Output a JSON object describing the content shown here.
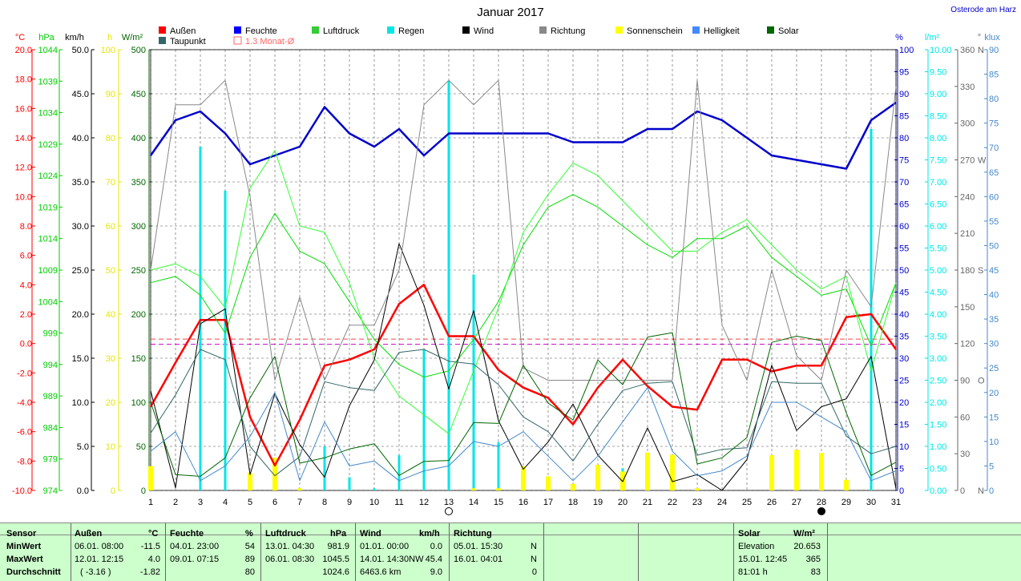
{
  "location": "Osterode am Harz",
  "chart_data": {
    "type": "line",
    "title": "Januar 2017",
    "categories": [
      "1",
      "2",
      "3",
      "4",
      "5",
      "6",
      "7",
      "8",
      "9",
      "10",
      "11",
      "12",
      "13",
      "14",
      "15",
      "16",
      "17",
      "18",
      "19",
      "20",
      "21",
      "22",
      "23",
      "24",
      "25",
      "26",
      "27",
      "28",
      "29",
      "30",
      "31"
    ],
    "axes": {
      "temp": {
        "unit": "°C",
        "min": -10,
        "max": 20,
        "ticks": [
          "-10.0",
          "-8.0",
          "-6.0",
          "-4.0",
          "-2.0",
          "0.0",
          "2.0",
          "4.0",
          "6.0",
          "8.0",
          "10.0",
          "12.0",
          "14.0",
          "16.0",
          "18.0",
          "20.0"
        ],
        "color": "#ff0000"
      },
      "pressure": {
        "unit": "hPa",
        "min": 974,
        "max": 1044,
        "ticks": [
          "974",
          "979",
          "984",
          "989",
          "994",
          "999",
          "1004",
          "1009",
          "1014",
          "1019",
          "1024",
          "1029",
          "1034",
          "1039",
          "1044"
        ],
        "color": "#00cc00"
      },
      "wind": {
        "unit": "km/h",
        "min": 0,
        "max": 50,
        "ticks": [
          "0.0",
          "5.0",
          "10.0",
          "15.0",
          "20.0",
          "25.0",
          "30.0",
          "35.0",
          "40.0",
          "45.0",
          "50.0"
        ],
        "color": "#000000"
      },
      "sun": {
        "unit": "h",
        "min": 0,
        "max": 100,
        "ticks": [
          "0",
          "10",
          "20",
          "30",
          "40",
          "50",
          "60",
          "70",
          "80",
          "90",
          "100"
        ],
        "color": "#e6e600"
      },
      "solar": {
        "unit": "W/m²",
        "min": 0,
        "max": 500,
        "ticks": [
          "0",
          "50",
          "100",
          "150",
          "200",
          "250",
          "300",
          "350",
          "400",
          "450",
          "500"
        ],
        "color": "#006600"
      },
      "humidity": {
        "unit": "%",
        "min": 0,
        "max": 100,
        "ticks": [
          "0",
          "5",
          "10",
          "15",
          "20",
          "25",
          "30",
          "35",
          "40",
          "45",
          "50",
          "55",
          "60",
          "65",
          "70",
          "75",
          "80",
          "85",
          "90",
          "95",
          "100"
        ],
        "color": "#0000cc"
      },
      "rain": {
        "unit": "l/m²",
        "min": 0,
        "max": 10,
        "ticks": [
          "0.00",
          "0.50",
          "1.00",
          "1.50",
          "2.00",
          "2.50",
          "3.00",
          "3.50",
          "4.00",
          "4.50",
          "5.00",
          "5.50",
          "6.00",
          "6.50",
          "7.00",
          "7.50",
          "8.00",
          "8.50",
          "9.00",
          "9.50",
          "10.00"
        ],
        "color": "#00e6e6"
      },
      "direction": {
        "unit": "°",
        "min": 0,
        "max": 360,
        "ticks": [
          "0",
          "30",
          "60",
          "90",
          "120",
          "150",
          "180",
          "210",
          "240",
          "270",
          "300",
          "330",
          "360"
        ],
        "cardinals": {
          "0": "N",
          "90": "O",
          "180": "S",
          "270": "W",
          "360": "N"
        },
        "color": "#666666"
      },
      "brightness": {
        "unit": "klux",
        "min": 0,
        "max": 90,
        "ticks": [
          "0",
          "5",
          "10",
          "15",
          "20",
          "25",
          "30",
          "35",
          "40",
          "45",
          "50",
          "55",
          "60",
          "65",
          "70",
          "75",
          "80",
          "85",
          "90"
        ],
        "color": "#4488cc"
      }
    },
    "legend": [
      {
        "name": "Außen",
        "color": "#ff0000"
      },
      {
        "name": "Feuchte",
        "color": "#0000ff"
      },
      {
        "name": "Luftdruck",
        "color": "#33cc33"
      },
      {
        "name": "Regen",
        "color": "#00e6e6"
      },
      {
        "name": "Wind",
        "color": "#000000"
      },
      {
        "name": "Richtung",
        "color": "#888888"
      },
      {
        "name": "Sonnenschein",
        "color": "#ffff00"
      },
      {
        "name": "Helligkeit",
        "color": "#4488ff"
      },
      {
        "name": "Solar",
        "color": "#006600"
      },
      {
        "name": "Taupunkt",
        "color": "#336666"
      },
      {
        "name": "1.3 Monat-Ø",
        "color": "#ff6666",
        "hollow": true
      }
    ],
    "series": [
      {
        "name": "Außen",
        "axis": "temp",
        "color": "#ff0000",
        "width": 2.5,
        "values": [
          -4.3,
          -1.3,
          1.6,
          1.6,
          -5.0,
          -8.3,
          -5.2,
          -1.5,
          -1.1,
          -0.4,
          2.7,
          4.0,
          0.5,
          0.5,
          -1.8,
          -3.0,
          -3.7,
          -5.5,
          -3.0,
          -1.1,
          -2.9,
          -4.3,
          -4.5,
          -1.1,
          -1.1,
          -1.9,
          -1.5,
          -1.5,
          1.8,
          2.0,
          -0.4
        ]
      },
      {
        "name": "Feuchte",
        "axis": "humidity",
        "color": "#0000cc",
        "width": 2.5,
        "values": [
          76,
          84,
          86,
          81,
          74,
          76,
          78,
          87,
          81,
          78,
          82,
          76,
          81,
          81,
          81,
          81,
          81,
          79,
          79,
          79,
          82,
          82,
          86,
          84,
          80,
          76,
          75,
          74,
          73,
          84,
          88
        ]
      },
      {
        "name": "Luftdruck",
        "axis": "pressure",
        "color": "#00dd00",
        "width": 1,
        "values": [
          1007,
          1008,
          1005,
          999,
          1011,
          1018,
          1012,
          1010,
          1004,
          998,
          994,
          992,
          993,
          998,
          1004,
          1013,
          1019,
          1021,
          1019,
          1016,
          1013,
          1011,
          1014,
          1014,
          1016,
          1011,
          1008,
          1005,
          1006,
          997,
          1007
        ]
      },
      {
        "name": "Luftdruck-Ø",
        "axis": "pressure",
        "color": "#33ff33",
        "width": 1,
        "values": [
          1009,
          1010,
          1008,
          1003,
          1022,
          1028,
          1016,
          1015,
          1007,
          995,
          989,
          986,
          983,
          993,
          1003,
          1015,
          1021,
          1026,
          1024,
          1020,
          1016,
          1012,
          1012,
          1015,
          1017,
          1013,
          1009,
          1006,
          1008,
          993,
          1007
        ]
      },
      {
        "name": "Wind",
        "axis": "wind",
        "color": "#000000",
        "width": 1,
        "values": [
          11.3,
          0.3,
          18.9,
          20.6,
          1.8,
          11.0,
          5.2,
          1.5,
          9.6,
          14.8,
          28.0,
          21.0,
          11.5,
          20.4,
          7.9,
          2.4,
          5.5,
          9.8,
          4.0,
          1.0,
          7.1,
          1.0,
          1.8,
          0.0,
          3.5,
          14.2,
          6.8,
          9.5,
          10.4,
          15.2,
          0.2
        ]
      },
      {
        "name": "Richtung",
        "axis": "direction",
        "color": "#888888",
        "width": 1,
        "values": [
          180,
          315,
          315,
          335,
          240,
          90,
          158,
          90,
          135,
          135,
          180,
          315,
          335,
          315,
          335,
          100,
          90,
          90,
          90,
          90,
          90,
          90,
          335,
          135,
          90,
          180,
          110,
          90,
          180,
          150,
          330
        ]
      },
      {
        "name": "Taupunkt",
        "axis": "temp",
        "color": "#336666",
        "width": 1,
        "values": [
          -6.1,
          -3.5,
          -0.4,
          -1.1,
          -7.0,
          -9.0,
          -7.7,
          -2.6,
          -3.0,
          -3.2,
          -0.6,
          -0.4,
          -1.2,
          -1.4,
          -2.8,
          -5.0,
          -6.0,
          -8.0,
          -5.5,
          -3.2,
          -2.7,
          -2.6,
          -7.6,
          -7.2,
          -7.1,
          -2.6,
          -2.7,
          -2.7,
          -6.3,
          -7.5,
          -7.0
        ]
      },
      {
        "name": "Solar",
        "axis": "solar",
        "color": "#006600",
        "width": 1,
        "values": [
          100,
          18,
          16,
          37,
          105,
          152,
          31,
          37,
          47,
          53,
          17,
          33,
          34,
          77,
          76,
          142,
          99,
          80,
          148,
          120,
          174,
          179,
          30,
          37,
          60,
          168,
          175,
          170,
          88,
          17,
          32
        ]
      },
      {
        "name": "Helligkeit",
        "axis": "brightness",
        "color": "#4488cc",
        "width": 1,
        "values": [
          8,
          12,
          2,
          5,
          11,
          20,
          2,
          14,
          5,
          6,
          2,
          4,
          5,
          10,
          9,
          12,
          7,
          2,
          7,
          14,
          21,
          8,
          3,
          4,
          7,
          18,
          18,
          15,
          12,
          2,
          4
        ]
      }
    ],
    "bars": [
      {
        "name": "Regen",
        "axis": "rain",
        "color": "#00e6e6",
        "values": [
          0.0,
          0.0,
          7.8,
          6.8,
          0.0,
          0.0,
          0.0,
          1.0,
          0.3,
          0.05,
          0.8,
          3.2,
          9.3,
          4.9,
          1.1,
          0.0,
          0.0,
          0.0,
          0.0,
          0.5,
          0.0,
          0.0,
          0.0,
          0.0,
          0.0,
          0.0,
          0.0,
          0.0,
          0.0,
          8.2,
          0.0
        ]
      },
      {
        "name": "Sonnenschein",
        "axis": "sun",
        "color": "#ffff00",
        "values": [
          5.5,
          0.0,
          0.0,
          0.0,
          4.0,
          7.4,
          0.5,
          0.0,
          0.0,
          0.0,
          0.0,
          0.0,
          0.0,
          0.5,
          0.5,
          5.5,
          3.2,
          1.5,
          5.8,
          4.3,
          8.6,
          8.1,
          0.5,
          0.0,
          0.0,
          8.0,
          9.2,
          8.5,
          2.4,
          0.0,
          0.0
        ]
      }
    ],
    "reference_lines": [
      {
        "name": "1.3 Monat-Ø",
        "axis": "temp",
        "value": 0.3,
        "color": "#ff4444"
      },
      {
        "name": "Taupunkt-Ø",
        "axis": "temp",
        "value": -0.05,
        "color": "#cc00cc"
      }
    ],
    "moon": {
      "new_moon_day": "28",
      "full_moon_day": "12"
    }
  },
  "footer": {
    "sensor_header": "Sensor",
    "min_label": "MinWert",
    "max_label": "MaxWert",
    "avg_label": "Durchschnitt",
    "aussen": {
      "title": "Außen",
      "unit": "°C",
      "min_date": "06.01. 08:00",
      "min_val": "-11.5",
      "max_date": "12.01. 12:15",
      "max_val": "4.0",
      "avg_extra": "( -3.16 )",
      "avg_val": "-1.82"
    },
    "feuchte": {
      "title": "Feuchte",
      "unit": "%",
      "min_date": "04.01. 23:00",
      "min_val": "54",
      "max_date": "09.01. 07:15",
      "max_val": "89",
      "avg_val": "80"
    },
    "luftdruck": {
      "title": "Luftdruck",
      "unit": "hPa",
      "min_date": "13.01. 04:30",
      "min_val": "981.9",
      "max_date": "06.01. 08:30",
      "max_val": "1045.5",
      "avg_val": "1024.6"
    },
    "wind": {
      "title": "Wind",
      "unit": "km/h",
      "min_date": "01.01. 00:00",
      "min_val": "0.0",
      "max_date": "14.01. 14:30NW",
      "max_val": "45.4",
      "avg_extra": "6463.6 km",
      "avg_val": "9.0"
    },
    "richtung": {
      "title": "Richtung",
      "min_date": "05.01. 15:30",
      "min_val": "N",
      "max_date": "16.01. 04:01",
      "max_val": "N",
      "avg_val": "0"
    },
    "solar": {
      "title": "Solar",
      "unit": "W/m²",
      "min_label": "Elevation",
      "min_val": "20.653",
      "max_date": "15.01. 12:45",
      "max_val": "365",
      "avg_label": "81:01 h",
      "avg_val": "83"
    }
  }
}
